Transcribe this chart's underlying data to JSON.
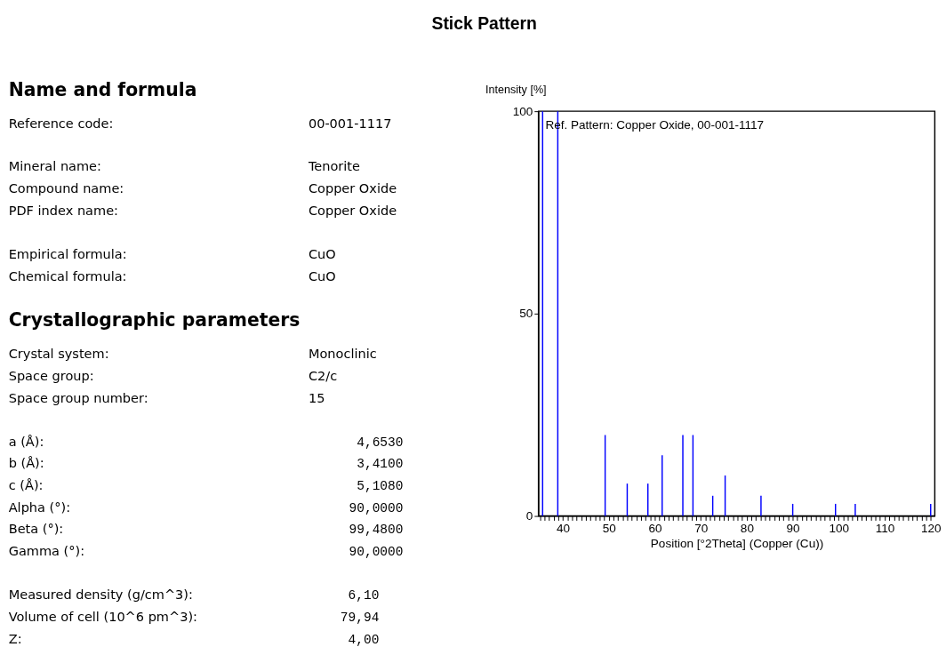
{
  "chart_data": [
    {
      "type": "other",
      "title": "Name and formula",
      "annotations": [
        "Reference code:",
        "00-001-1117",
        "Mineral name:",
        "Tenorite",
        "Compound name:",
        "Copper Oxide",
        "PDF index name:",
        "Copper Oxide",
        "Empirical formula:",
        "CuO",
        "Chemical formula:",
        "CuO"
      ]
    },
    {
      "type": "other",
      "title": "Crystallographic parameters",
      "annotations": [
        "Crystal system:",
        "Monoclinic",
        "Space group:",
        "C2/c",
        "Space group number:",
        "15",
        "a (Å):",
        "4,6530",
        "b (Å):",
        "3,4100",
        "c (Å):",
        "5,1080",
        "Alpha (°):",
        "90,0000",
        "Beta (°):",
        "99,4800",
        "Gamma (°):",
        "90,0000",
        "Measured density (g/cm^3):",
        "6,10",
        "Volume of cell (10^6 pm^3):",
        "79,94",
        "Z:",
        "4,00"
      ]
    },
    {
      "type": "bar",
      "title": "Stick Pattern",
      "xlabel": "Position [°2Theta] (Copper (Cu))",
      "ylabel": "Intensity [%]",
      "annotations": [
        "Ref. Pattern: Copper Oxide, 00-001-1117"
      ],
      "x": [
        35.6,
        38.9,
        49.2,
        54.0,
        58.5,
        61.6,
        66.1,
        68.3,
        72.6,
        75.3,
        83.1,
        90.0,
        99.3,
        103.6,
        120.0
      ],
      "values": [
        100,
        100,
        20,
        8,
        8,
        15,
        20,
        20,
        5,
        10,
        5,
        3,
        3,
        3,
        3
      ],
      "color": "#0000ff",
      "xlim": [
        34.7,
        120.9
      ],
      "xticks": [
        {
          "value": 35,
          "label": null
        },
        {
          "value": 36,
          "label": null
        },
        {
          "value": 37,
          "label": null
        },
        {
          "value": 38,
          "label": null
        },
        {
          "value": 39,
          "label": null
        },
        40,
        {
          "value": 41,
          "label": null
        },
        {
          "value": 42,
          "label": null
        },
        {
          "value": 43,
          "label": null
        },
        {
          "value": 44,
          "label": null
        },
        {
          "value": 45,
          "label": null
        },
        {
          "value": 46,
          "label": null
        },
        {
          "value": 47,
          "label": null
        },
        {
          "value": 48,
          "label": null
        },
        {
          "value": 49,
          "label": null
        },
        50,
        {
          "value": 51,
          "label": null
        },
        {
          "value": 52,
          "label": null
        },
        {
          "value": 53,
          "label": null
        },
        {
          "value": 54,
          "label": null
        },
        {
          "value": 55,
          "label": null
        },
        {
          "value": 56,
          "label": null
        },
        {
          "value": 57,
          "label": null
        },
        {
          "value": 58,
          "label": null
        },
        {
          "value": 59,
          "label": null
        },
        60,
        {
          "value": 61,
          "label": null
        },
        {
          "value": 62,
          "label": null
        },
        {
          "value": 63,
          "label": null
        },
        {
          "value": 64,
          "label": null
        },
        {
          "value": 65,
          "label": null
        },
        {
          "value": 66,
          "label": null
        },
        {
          "value": 67,
          "label": null
        },
        {
          "value": 68,
          "label": null
        },
        {
          "value": 69,
          "label": null
        },
        70,
        {
          "value": 71,
          "label": null
        },
        {
          "value": 72,
          "label": null
        },
        {
          "value": 73,
          "label": null
        },
        {
          "value": 74,
          "label": null
        },
        {
          "value": 75,
          "label": null
        },
        {
          "value": 76,
          "label": null
        },
        {
          "value": 77,
          "label": null
        },
        {
          "value": 78,
          "label": null
        },
        {
          "value": 79,
          "label": null
        },
        80,
        {
          "value": 81,
          "label": null
        },
        {
          "value": 82,
          "label": null
        },
        {
          "value": 83,
          "label": null
        },
        {
          "value": 84,
          "label": null
        },
        {
          "value": 85,
          "label": null
        },
        {
          "value": 86,
          "label": null
        },
        {
          "value": 87,
          "label": null
        },
        {
          "value": 88,
          "label": null
        },
        {
          "value": 89,
          "label": null
        },
        90,
        {
          "value": 91,
          "label": null
        },
        {
          "value": 92,
          "label": null
        },
        {
          "value": 93,
          "label": null
        },
        {
          "value": 94,
          "label": null
        },
        {
          "value": 95,
          "label": null
        },
        {
          "value": 96,
          "label": null
        },
        {
          "value": 97,
          "label": null
        },
        {
          "value": 98,
          "label": null
        },
        {
          "value": 99,
          "label": null
        },
        100,
        {
          "value": 101,
          "label": null
        },
        {
          "value": 102,
          "label": null
        },
        {
          "value": 103,
          "label": null
        },
        {
          "value": 104,
          "label": null
        },
        {
          "value": 105,
          "label": null
        },
        {
          "value": 106,
          "label": null
        },
        {
          "value": 107,
          "label": null
        },
        {
          "value": 108,
          "label": null
        },
        {
          "value": 109,
          "label": null
        },
        110,
        {
          "value": 111,
          "label": null
        },
        {
          "value": 112,
          "label": null
        },
        {
          "value": 113,
          "label": null
        },
        {
          "value": 114,
          "label": null
        },
        {
          "value": 115,
          "label": null
        },
        {
          "value": 116,
          "label": null
        },
        {
          "value": 117,
          "label": null
        },
        {
          "value": 118,
          "label": null
        },
        {
          "value": 119,
          "label": null
        },
        120
      ],
      "ylim": [
        0,
        100
      ],
      "yticks": [
        0,
        50,
        100
      ],
      "grid": false
    }
  ]
}
